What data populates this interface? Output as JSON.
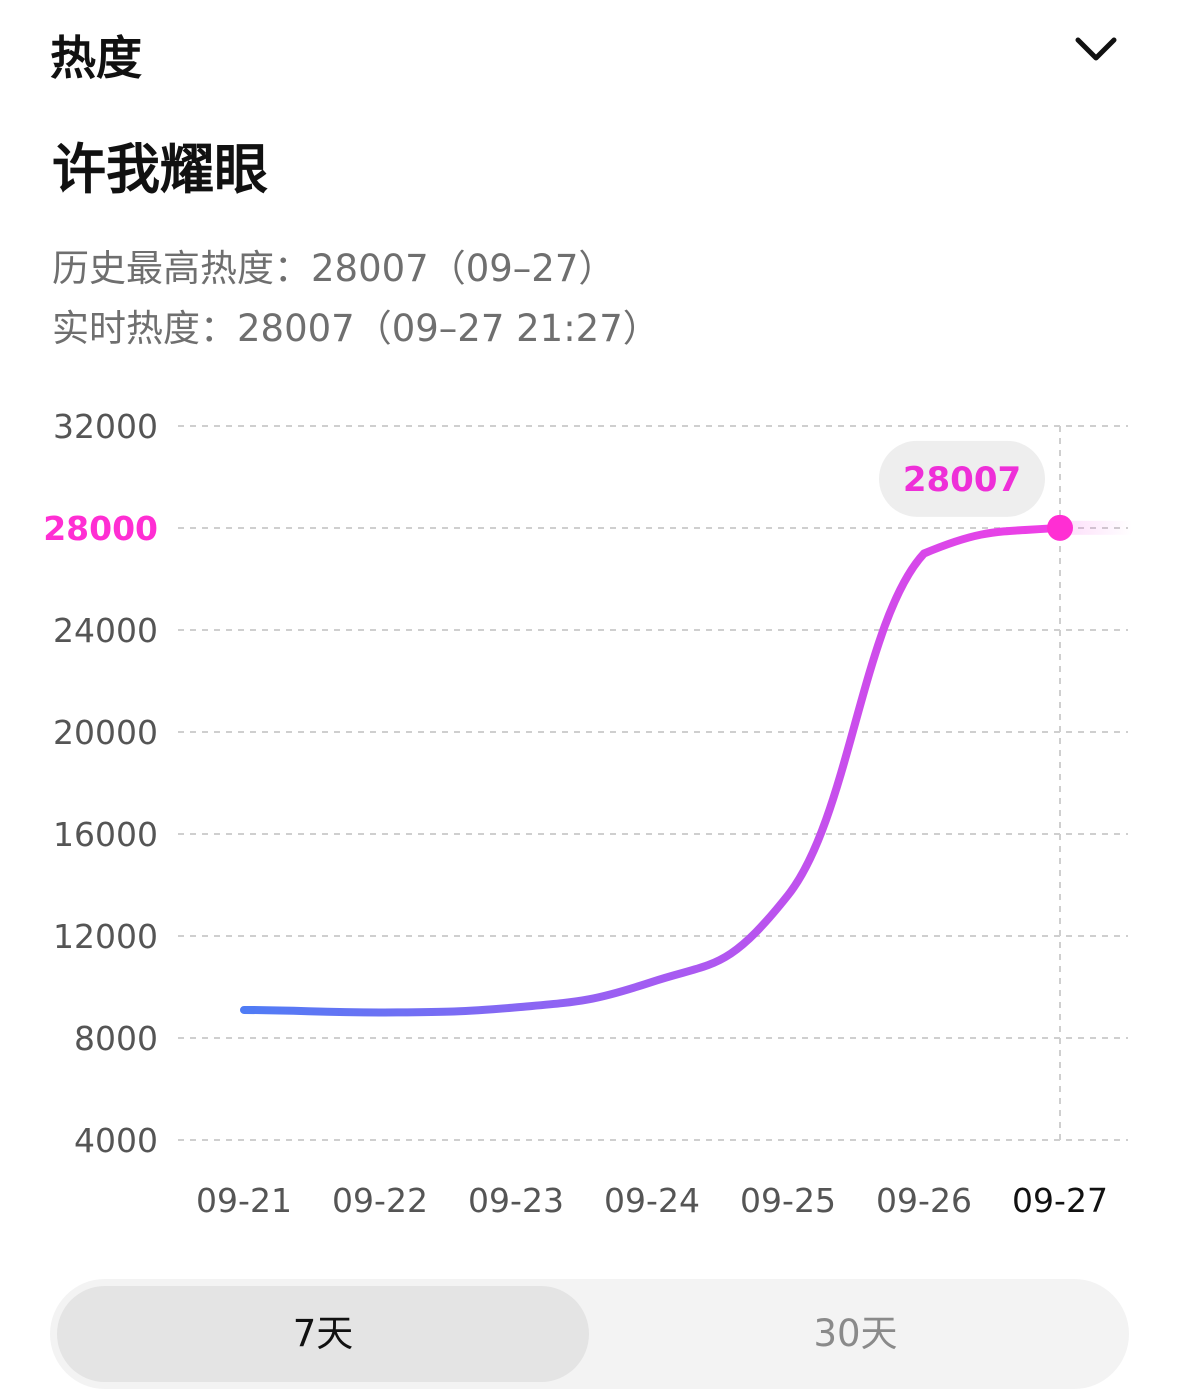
{
  "header": {
    "title": "热度"
  },
  "item": {
    "title": "许我耀眼"
  },
  "stats": {
    "peak_line": "历史最高热度：28007（09–27）",
    "live_line": "实时热度：28007（09–27 21:27）"
  },
  "tabs": [
    {
      "label": "7天",
      "active": true
    },
    {
      "label": "30天",
      "active": false
    }
  ],
  "colors": {
    "line_start": "#4f7cf5",
    "line_mid": "#a35cf2",
    "line_end": "#f23ee5",
    "highlight": "#ff2ed3"
  },
  "chart_data": {
    "type": "line",
    "title": "",
    "xlabel": "",
    "ylabel": "",
    "categories": [
      "09-21",
      "09-22",
      "09-23",
      "09-24",
      "09-25",
      "09-26",
      "09-27"
    ],
    "series": [
      {
        "values": [
          9100,
          9000,
          9200,
          10200,
          13600,
          27000,
          28007
        ]
      }
    ],
    "ylim": [
      4000,
      32000
    ],
    "yticks": [
      "4000",
      "8000",
      "12000",
      "16000",
      "20000",
      "24000",
      "28000",
      "32000"
    ],
    "highlight_ytick": "28000",
    "tooltip_value": "28007",
    "grid": true
  }
}
